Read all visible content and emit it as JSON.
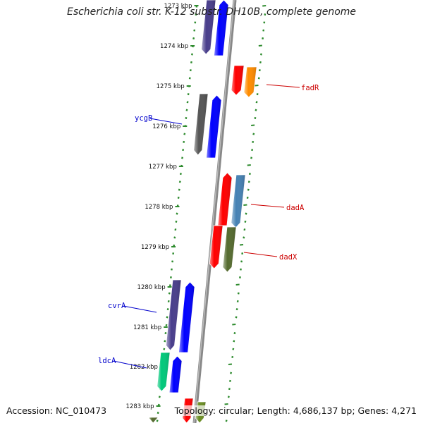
{
  "title": "Escherichia coli str. K-12 substr. DH10B, complete genome",
  "footer": {
    "accession": "Accession: NC_010473",
    "stats": "Topology: circular; Length: 4,686,137 bp; Genes: 4,271"
  },
  "colors": {
    "backbone": "#8a8a8a",
    "ruler": "#2e8b2e",
    "label_forward": "#cc0000",
    "label_reverse": "#0000cc"
  },
  "ticks": [
    {
      "label": "1273 kbp"
    },
    {
      "label": "1274 kbp"
    },
    {
      "label": "1275 kbp"
    },
    {
      "label": "1276 kbp"
    },
    {
      "label": "1277 kbp"
    },
    {
      "label": "1278 kbp"
    },
    {
      "label": "1279 kbp"
    },
    {
      "label": "1280 kbp"
    },
    {
      "label": "1281 kbp"
    },
    {
      "label": "1282 kbp"
    },
    {
      "label": "1283 kbp"
    }
  ],
  "gene_labels": [
    {
      "name": "fadR",
      "strand": "forward"
    },
    {
      "name": "dadA",
      "strand": "forward"
    },
    {
      "name": "dadX",
      "strand": "forward"
    },
    {
      "name": "ycgB",
      "strand": "reverse"
    },
    {
      "name": "cvrA",
      "strand": "reverse"
    },
    {
      "name": "ldcA",
      "strand": "reverse"
    }
  ]
}
